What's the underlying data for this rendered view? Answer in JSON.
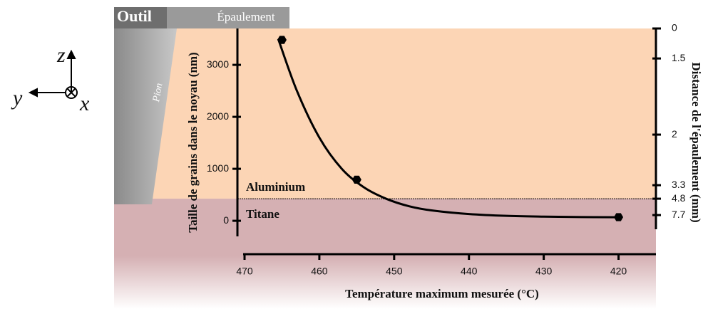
{
  "chart_data": {
    "type": "scatter",
    "x_label": "Température maximum mesurée (°C)",
    "y_label": "Taille de grains dans le noyau (nm)",
    "y2_label": "Distance de l'épaulement (mm)",
    "xlim": [
      470,
      415
    ],
    "xticks": [
      470,
      460,
      450,
      440,
      430,
      420
    ],
    "ylim": [
      -300,
      3700
    ],
    "yticks": [
      0,
      1000,
      2000,
      3000
    ],
    "y2ticks": [
      0,
      1.5,
      2,
      3.3,
      4.8,
      7.7
    ],
    "y2tick_positions": [
      3700,
      3123,
      1658,
      685,
      425,
      110
    ],
    "boundary": 425,
    "regions": {
      "upper": "Aluminium",
      "lower": "Titane"
    },
    "tool": {
      "name": "Outil",
      "shoulder": "Épaulement",
      "pin": "Pion"
    },
    "axes_glyph": {
      "z": "z",
      "y": "y",
      "x": "x"
    },
    "series": [
      {
        "kind": "points",
        "color": "#000000",
        "x": [
          465,
          455,
          420
        ],
        "values": [
          3480,
          790,
          70
        ]
      },
      {
        "kind": "fit",
        "color": "#000000",
        "x": [
          465.5,
          463,
          460,
          457,
          454,
          451,
          448,
          445,
          440,
          435,
          430,
          425,
          420
        ],
        "values": [
          3500,
          2500,
          1600,
          1000,
          640,
          420,
          280,
          200,
          130,
          95,
          80,
          72,
          68
        ]
      }
    ]
  }
}
